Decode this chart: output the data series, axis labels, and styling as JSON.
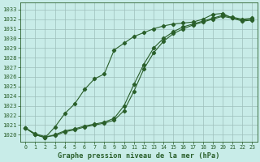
{
  "title": "Graphe pression niveau de la mer (hPa)",
  "bg_color": "#c8ece8",
  "grid_color": "#9dbfbb",
  "line_color": "#2a5f2a",
  "xlim": [
    -0.5,
    23.5
  ],
  "ylim": [
    1019.3,
    1033.7
  ],
  "yticks": [
    1020,
    1021,
    1022,
    1023,
    1024,
    1025,
    1026,
    1027,
    1028,
    1029,
    1030,
    1031,
    1032,
    1033
  ],
  "xticks": [
    0,
    1,
    2,
    3,
    4,
    5,
    6,
    7,
    8,
    9,
    10,
    11,
    12,
    13,
    14,
    15,
    16,
    17,
    18,
    19,
    20,
    21,
    22,
    23
  ],
  "line1_x": [
    0,
    1,
    2,
    3,
    4,
    5,
    6,
    7,
    8,
    9,
    10,
    11,
    12,
    13,
    14,
    15,
    16,
    17,
    18,
    19,
    20,
    21,
    22,
    23
  ],
  "line1_y": [
    1020.7,
    1020.0,
    1019.7,
    1020.8,
    1022.2,
    1023.2,
    1024.7,
    1025.8,
    1026.3,
    1028.8,
    1029.5,
    1030.2,
    1030.6,
    1031.0,
    1031.3,
    1031.5,
    1031.6,
    1031.7,
    1032.0,
    1032.5,
    1032.6,
    1032.1,
    1031.8,
    1031.9
  ],
  "line2_x": [
    0,
    1,
    2,
    3,
    4,
    5,
    6,
    7,
    8,
    9,
    10,
    11,
    12,
    13,
    14,
    15,
    16,
    17,
    18,
    19,
    20,
    21,
    22,
    23
  ],
  "line2_y": [
    1020.7,
    1020.1,
    1019.8,
    1019.9,
    1020.3,
    1020.5,
    1020.8,
    1021.0,
    1021.2,
    1021.5,
    1022.5,
    1024.5,
    1026.8,
    1028.5,
    1029.7,
    1030.5,
    1031.0,
    1031.4,
    1031.7,
    1032.0,
    1032.3,
    1032.1,
    1031.9,
    1032.0
  ],
  "line3_x": [
    0,
    1,
    2,
    3,
    4,
    5,
    6,
    7,
    8,
    9,
    10,
    11,
    12,
    13,
    14,
    15,
    16,
    17,
    18,
    19,
    20,
    21,
    22,
    23
  ],
  "line3_y": [
    1020.7,
    1020.0,
    1019.7,
    1020.0,
    1020.4,
    1020.6,
    1020.9,
    1021.1,
    1021.3,
    1021.7,
    1023.0,
    1025.2,
    1027.3,
    1029.0,
    1030.0,
    1030.7,
    1031.2,
    1031.5,
    1031.8,
    1032.1,
    1032.4,
    1032.2,
    1032.0,
    1032.1
  ]
}
